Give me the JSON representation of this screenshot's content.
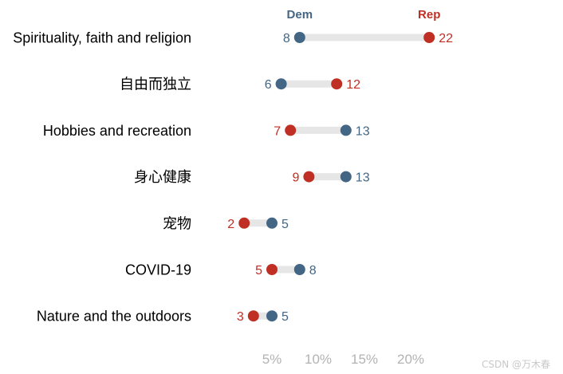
{
  "chart_data": {
    "type": "dumbbell",
    "title": "",
    "xlabel": "",
    "ylabel": "",
    "x_unit": "%",
    "xlim": [
      1,
      22
    ],
    "x_ticks": [
      {
        "value": 5,
        "label": "5%"
      },
      {
        "value": 10,
        "label": "10%"
      },
      {
        "value": 15,
        "label": "15%"
      },
      {
        "value": 20,
        "label": "20%"
      }
    ],
    "grid": false,
    "legend": "top, above markers",
    "series": [
      {
        "name": "Dem",
        "color": "#436685"
      },
      {
        "name": "Rep",
        "color": "#bf2f24"
      }
    ],
    "categories": [
      "Spirituality, faith and religion",
      "自由而独立",
      "Hobbies and recreation",
      "身心健康",
      "宠物",
      "COVID-19",
      "Nature and the outdoors"
    ],
    "rows": [
      {
        "category": "Spirituality, faith and religion",
        "dem": 8,
        "rep": 22
      },
      {
        "category": "自由而独立",
        "dem": 6,
        "rep": 12
      },
      {
        "category": "Hobbies and recreation",
        "dem": 13,
        "rep": 7
      },
      {
        "category": "身心健康",
        "dem": 13,
        "rep": 9
      },
      {
        "category": "宠物",
        "dem": 5,
        "rep": 2
      },
      {
        "category": "COVID-19",
        "dem": 8,
        "rep": 5
      },
      {
        "category": "Nature and the outdoors",
        "dem": 5,
        "rep": 3
      }
    ],
    "bar_color": "#e6e6e6"
  },
  "watermark": "CSDN @万木春"
}
